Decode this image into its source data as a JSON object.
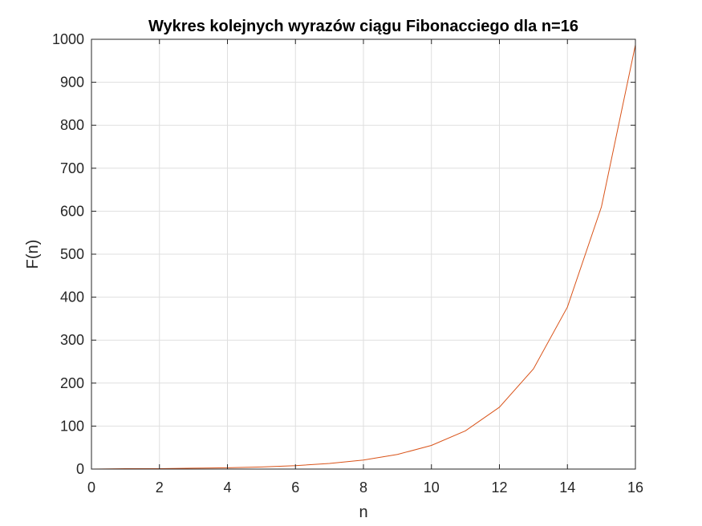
{
  "chart_data": {
    "type": "line",
    "title": "Wykres kolejnych wyrazów ciągu Fibonacciego dla n=16",
    "xlabel": "n",
    "ylabel": "F(n)",
    "xlim": [
      0,
      16
    ],
    "ylim": [
      0,
      1000
    ],
    "x_ticks": [
      "0",
      "2",
      "4",
      "6",
      "8",
      "10",
      "12",
      "14",
      "16"
    ],
    "y_ticks": [
      "0",
      "100",
      "200",
      "300",
      "400",
      "500",
      "600",
      "700",
      "800",
      "900",
      "1000"
    ],
    "grid": true,
    "series": [
      {
        "color": "#D95319",
        "x": [
          0,
          1,
          2,
          3,
          4,
          5,
          6,
          7,
          8,
          9,
          10,
          11,
          12,
          13,
          14,
          15,
          16
        ],
        "y": [
          0,
          1,
          1,
          2,
          3,
          5,
          8,
          13,
          21,
          34,
          55,
          89,
          144,
          233,
          377,
          610,
          987
        ]
      }
    ]
  }
}
